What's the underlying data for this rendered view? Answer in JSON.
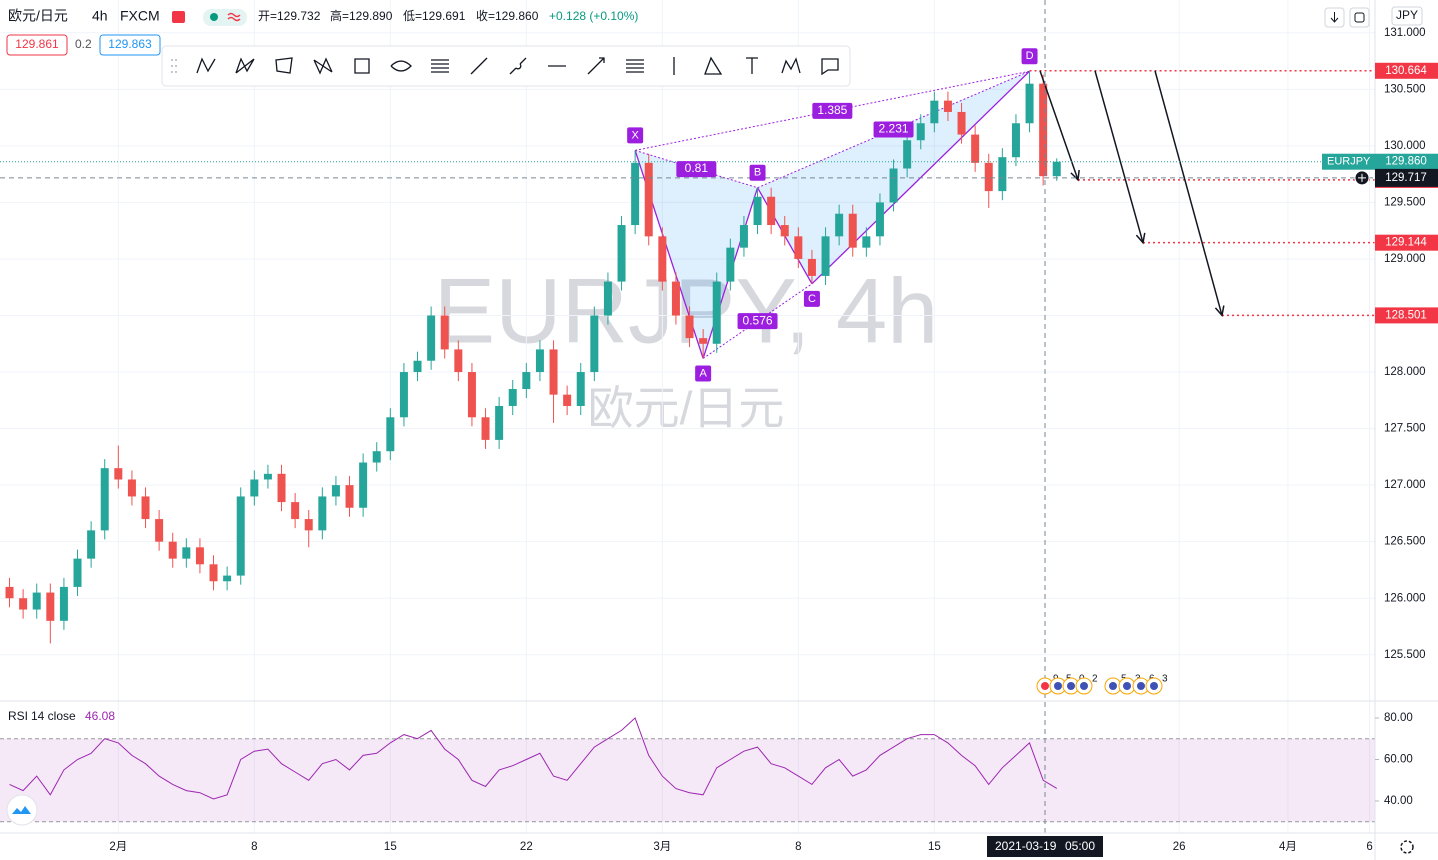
{
  "header": {
    "symbol": "欧元/日元",
    "interval": "4h",
    "exchange": "FXCM",
    "ohlc": [
      "开=129.732",
      "高=129.890",
      "低=129.691",
      "收=129.860"
    ],
    "change": "+0.128 (+0.10%)",
    "bid": "129.861",
    "spread": "0.2",
    "ask": "129.863",
    "currency": "JPY"
  },
  "watermark": {
    "title": "EURJPY, 4h",
    "subtitle": "欧元/日元"
  },
  "crosshair": {
    "date": "2021-03-19",
    "time": "05:00"
  },
  "events": [
    "9",
    "5",
    "0",
    "2",
    "5",
    "3",
    "6",
    "3"
  ],
  "chart_data": [
    {
      "type": "candlestick",
      "categories": [
        null,
        null,
        null,
        null,
        null,
        null,
        null,
        null,
        null,
        null,
        null,
        null,
        null,
        null,
        null,
        null,
        null,
        null,
        null,
        null,
        null,
        null,
        null,
        null,
        null,
        null,
        null,
        null,
        null,
        null,
        null,
        null,
        null,
        null,
        null,
        null,
        null,
        null,
        null,
        null,
        null,
        null,
        null,
        null,
        null,
        null,
        null,
        null,
        null,
        null,
        null,
        null,
        null,
        null,
        null,
        null,
        null,
        null,
        null,
        null,
        null,
        null,
        null,
        null,
        null,
        null,
        null,
        null,
        null,
        null,
        null,
        null,
        null,
        null,
        null,
        null,
        null,
        null
      ],
      "open": [
        126.1,
        126.0,
        125.9,
        126.05,
        125.8,
        126.1,
        126.35,
        126.6,
        127.15,
        127.05,
        126.9,
        126.7,
        126.5,
        126.35,
        126.45,
        126.3,
        126.15,
        126.2,
        126.9,
        127.05,
        127.1,
        126.85,
        126.7,
        126.6,
        126.9,
        127.0,
        126.8,
        127.2,
        127.3,
        127.6,
        128.0,
        128.1,
        128.5,
        128.2,
        128.0,
        127.6,
        127.4,
        127.7,
        127.85,
        128.0,
        128.2,
        127.8,
        127.7,
        128.0,
        128.5,
        128.8,
        129.3,
        129.85,
        129.2,
        128.8,
        128.5,
        128.3,
        128.25,
        128.8,
        129.1,
        129.3,
        129.55,
        129.3,
        129.2,
        129.0,
        128.85,
        129.2,
        129.4,
        129.1,
        129.2,
        129.5,
        129.8,
        130.05,
        130.2,
        130.4,
        130.3,
        130.1,
        129.85,
        129.6,
        129.9,
        130.2,
        130.55,
        129.732
      ],
      "high": [
        126.18,
        126.08,
        126.13,
        126.13,
        126.18,
        126.43,
        126.68,
        127.23,
        127.35,
        127.13,
        126.98,
        126.78,
        126.58,
        126.53,
        126.53,
        126.38,
        126.28,
        126.98,
        127.13,
        127.18,
        127.18,
        126.93,
        126.78,
        126.98,
        127.08,
        127.08,
        127.28,
        127.38,
        127.68,
        128.08,
        128.18,
        128.58,
        128.58,
        128.28,
        128.08,
        127.68,
        127.78,
        127.93,
        128.08,
        128.28,
        128.28,
        127.88,
        128.08,
        128.58,
        128.88,
        129.38,
        129.96,
        129.93,
        129.28,
        128.88,
        128.58,
        128.38,
        128.88,
        129.18,
        129.38,
        129.63,
        129.63,
        129.38,
        129.28,
        129.08,
        129.28,
        129.48,
        129.48,
        129.28,
        129.58,
        129.88,
        130.13,
        130.28,
        130.48,
        130.48,
        130.38,
        130.18,
        129.93,
        129.98,
        130.28,
        130.66,
        130.63,
        129.89
      ],
      "low": [
        125.92,
        125.82,
        125.82,
        125.6,
        125.72,
        126.02,
        126.27,
        126.52,
        126.97,
        126.82,
        126.62,
        126.42,
        126.27,
        126.27,
        126.22,
        126.07,
        126.07,
        126.12,
        126.82,
        126.97,
        126.77,
        126.62,
        126.45,
        126.52,
        126.82,
        126.72,
        126.72,
        127.12,
        127.22,
        127.52,
        127.92,
        128.02,
        128.12,
        127.92,
        127.52,
        127.32,
        127.32,
        127.62,
        127.77,
        127.92,
        127.55,
        127.62,
        127.62,
        127.92,
        128.42,
        128.72,
        129.22,
        129.12,
        128.72,
        128.42,
        128.22,
        128.12,
        128.17,
        128.72,
        129.02,
        129.22,
        129.22,
        129.12,
        128.92,
        128.78,
        128.77,
        129.12,
        129.02,
        129.02,
        129.12,
        129.42,
        129.72,
        129.97,
        130.12,
        130.22,
        130.02,
        129.77,
        129.45,
        129.52,
        129.82,
        130.12,
        129.65,
        129.691
      ],
      "close": [
        126.0,
        125.9,
        126.05,
        125.8,
        126.1,
        126.35,
        126.6,
        127.15,
        127.05,
        126.9,
        126.7,
        126.5,
        126.35,
        126.45,
        126.3,
        126.15,
        126.2,
        126.9,
        127.05,
        127.1,
        126.85,
        126.7,
        126.6,
        126.9,
        127.0,
        126.8,
        127.2,
        127.3,
        127.6,
        128.0,
        128.1,
        128.5,
        128.2,
        128.0,
        127.6,
        127.4,
        127.7,
        127.85,
        128.0,
        128.2,
        127.8,
        127.7,
        128.0,
        128.5,
        128.8,
        129.3,
        129.85,
        129.2,
        128.8,
        128.5,
        128.3,
        128.25,
        128.8,
        129.1,
        129.3,
        129.55,
        129.3,
        129.2,
        129.0,
        128.85,
        129.2,
        129.4,
        129.1,
        129.2,
        129.5,
        129.8,
        130.05,
        130.2,
        130.4,
        130.3,
        130.1,
        129.85,
        129.6,
        129.9,
        130.2,
        130.55,
        129.732,
        129.86
      ],
      "up_color": "#26a69a",
      "down_color": "#ef5350",
      "xlim": [
        -0.7,
        100.4
      ],
      "xticks": [
        {
          "value": 8,
          "label": "2月"
        },
        {
          "value": 18,
          "label": "8"
        },
        {
          "value": 28,
          "label": "15"
        },
        {
          "value": 38,
          "label": "22"
        },
        {
          "value": 48,
          "label": "3月"
        },
        {
          "value": 58,
          "label": "8"
        },
        {
          "value": 68,
          "label": "15"
        },
        {
          "value": 86,
          "label": "26"
        },
        {
          "value": 94,
          "label": "4月"
        },
        {
          "value": 100,
          "label": "6"
        }
      ],
      "ylim": [
        125.1,
        131.29
      ],
      "yticks": [
        {
          "value": 125.5,
          "label": "125.500"
        },
        {
          "value": 126,
          "label": "126.000"
        },
        {
          "value": 126.5,
          "label": "126.500"
        },
        {
          "value": 127,
          "label": "127.000"
        },
        {
          "value": 127.5,
          "label": "127.500"
        },
        {
          "value": 128,
          "label": "128.000"
        },
        {
          "value": 128.5,
          "label": "128.500"
        },
        {
          "value": 129,
          "label": "129.000"
        },
        {
          "value": 129.5,
          "label": "129.500"
        },
        {
          "value": 130,
          "label": "130.000"
        },
        {
          "value": 130.5,
          "label": "130.500"
        },
        {
          "value": 131,
          "label": "131.000"
        }
      ],
      "grid": true,
      "pattern": {
        "color": "#9c1fe0",
        "points": [
          {
            "label": "X",
            "x": 46,
            "y": 129.96
          },
          {
            "label": "A",
            "x": 51,
            "y": 128.12
          },
          {
            "label": "B",
            "x": 55,
            "y": 129.63
          },
          {
            "label": "C",
            "x": 59,
            "y": 128.78
          },
          {
            "label": "D",
            "x": 75,
            "y": 130.66
          }
        ],
        "ratios": [
          0.81,
          0.576,
          2.231,
          1.385
        ]
      },
      "price_lines": [
        130.664,
        129.699,
        129.144,
        128.501
      ],
      "last_price": {
        "name": "EURJPY",
        "value": 129.86,
        "label": "129.860"
      },
      "crosshair_price": 129.717
    },
    {
      "type": "line",
      "title": "RSI",
      "subtitle": "14 close",
      "color": "#9c27b0",
      "values": [
        48,
        45,
        52,
        43,
        55,
        60,
        63,
        70,
        68,
        62,
        58,
        52,
        48,
        45,
        44,
        41,
        43,
        60,
        64,
        65,
        58,
        54,
        50,
        58,
        60,
        55,
        62,
        63,
        68,
        72,
        70,
        74,
        65,
        60,
        50,
        47,
        55,
        57,
        60,
        63,
        52,
        50,
        58,
        66,
        70,
        74,
        80,
        62,
        52,
        46,
        44,
        43,
        56,
        60,
        64,
        66,
        58,
        56,
        52,
        48,
        56,
        60,
        52,
        55,
        62,
        66,
        70,
        72,
        72,
        68,
        62,
        57,
        48,
        56,
        62,
        68,
        50,
        46.08
      ],
      "ylim": [
        24.6,
        87.7
      ],
      "yticks": [
        {
          "value": 80,
          "label": "80.00"
        },
        {
          "value": 60,
          "label": "60.00"
        },
        {
          "value": 40,
          "label": "40.00"
        }
      ],
      "band": [
        30,
        70
      ]
    }
  ]
}
